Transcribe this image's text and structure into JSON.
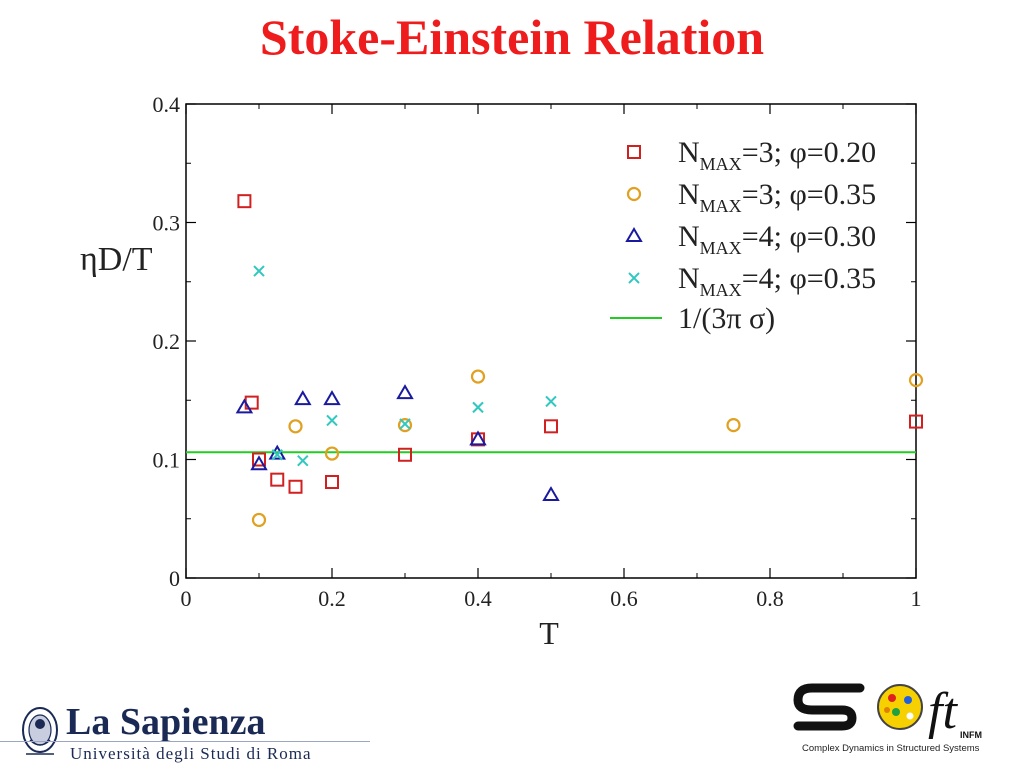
{
  "slide": {
    "title": "Stoke-Einstein Relation"
  },
  "chart_data": {
    "type": "scatter",
    "title": "",
    "xlabel": "T",
    "ylabel": "ηD/T",
    "xlim": [
      0,
      1
    ],
    "ylim": [
      0,
      0.4
    ],
    "x_ticks": [
      0,
      0.2,
      0.4,
      0.6,
      0.8,
      1
    ],
    "x_tick_labels": [
      "0",
      "0.2",
      "0.4",
      "0.6",
      "0.8",
      "1"
    ],
    "y_ticks": [
      0,
      0.1,
      0.2,
      0.3,
      0.4
    ],
    "y_tick_labels": [
      "0",
      "0.1",
      "0.2",
      "0.3",
      "0.4"
    ],
    "grid": false,
    "legend_position": "top-right",
    "series": [
      {
        "label_main": "N",
        "label_sub": "MAX",
        "label_rest": "=3; φ=0.20",
        "marker": "square",
        "color": "#d02020",
        "points": [
          [
            0.08,
            0.318
          ],
          [
            0.09,
            0.148
          ],
          [
            0.1,
            0.1
          ],
          [
            0.125,
            0.083
          ],
          [
            0.15,
            0.077
          ],
          [
            0.2,
            0.081
          ],
          [
            0.3,
            0.104
          ],
          [
            0.4,
            0.117
          ],
          [
            0.5,
            0.128
          ],
          [
            1.0,
            0.132
          ]
        ]
      },
      {
        "label_main": "N",
        "label_sub": "MAX",
        "label_rest": "=3; φ=0.35",
        "marker": "circle",
        "color": "#e0a020",
        "points": [
          [
            0.1,
            0.049
          ],
          [
            0.15,
            0.128
          ],
          [
            0.2,
            0.105
          ],
          [
            0.3,
            0.129
          ],
          [
            0.4,
            0.17
          ],
          [
            0.75,
            0.129
          ],
          [
            1.0,
            0.167
          ]
        ]
      },
      {
        "label_main": "N",
        "label_sub": "MAX",
        "label_rest": "=4; φ=0.30",
        "marker": "triangle",
        "color": "#1a1aa0",
        "points": [
          [
            0.08,
            0.144
          ],
          [
            0.1,
            0.096
          ],
          [
            0.125,
            0.105
          ],
          [
            0.16,
            0.151
          ],
          [
            0.2,
            0.151
          ],
          [
            0.3,
            0.156
          ],
          [
            0.4,
            0.117
          ],
          [
            0.5,
            0.07
          ]
        ]
      },
      {
        "label_main": "N",
        "label_sub": "MAX",
        "label_rest": "=4; φ=0.35",
        "marker": "cross",
        "color": "#30c8c0",
        "points": [
          [
            0.1,
            0.259
          ],
          [
            0.125,
            0.104
          ],
          [
            0.16,
            0.099
          ],
          [
            0.2,
            0.133
          ],
          [
            0.3,
            0.13
          ],
          [
            0.4,
            0.144
          ],
          [
            0.5,
            0.149
          ]
        ]
      }
    ],
    "reference_line": {
      "label": "1/(3π σ)",
      "y": 0.1061,
      "color": "#22cc22"
    }
  },
  "footer": {
    "sapienza_name": "La Sapienza",
    "sapienza_sub": "Università degli Studi di Roma",
    "soft_tail": "ft",
    "soft_infm": "INFM",
    "soft_tagline": "Complex Dynamics in Structured Systems"
  }
}
